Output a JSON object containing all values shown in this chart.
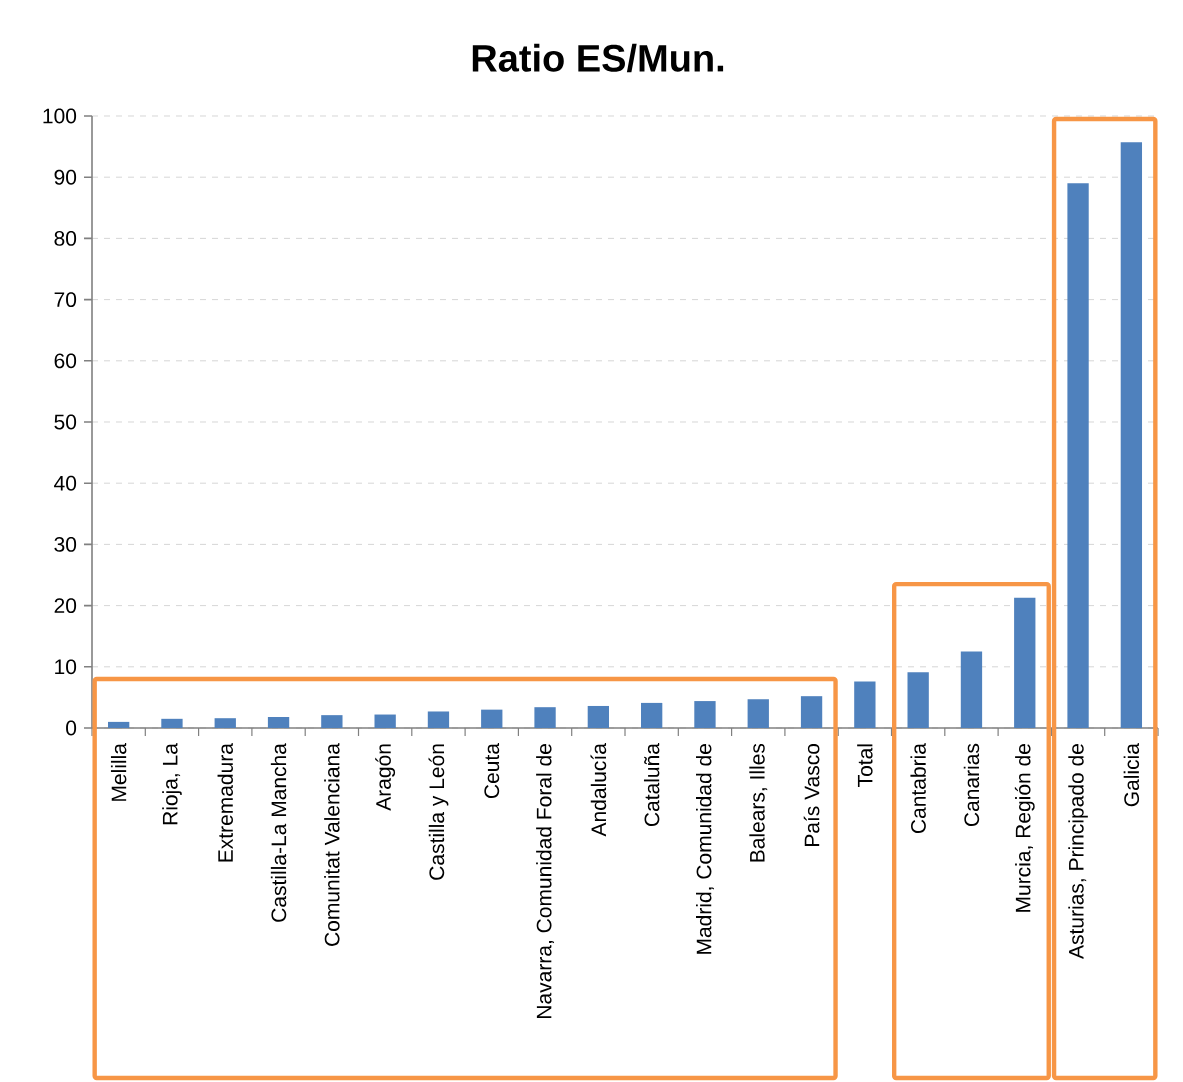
{
  "chart_data": {
    "type": "bar",
    "title": "Ratio ES/Mun.",
    "categories": [
      "Melilla",
      "Rioja, La",
      "Extremadura",
      "Castilla-La Mancha",
      "Comunitat Valenciana",
      "Aragón",
      "Castilla y León",
      "Ceuta",
      "Navarra, Comunidad Foral de",
      "Andalucía",
      "Cataluña",
      "Madrid, Comunidad de",
      "Balears, Illes",
      "País Vasco",
      "Total",
      "Cantabria",
      "Canarias",
      "Murcia, Región de",
      "Asturias, Principado de",
      "Galicia"
    ],
    "values": [
      1.0,
      1.5,
      1.6,
      1.8,
      2.1,
      2.2,
      2.7,
      3.0,
      3.4,
      3.6,
      4.1,
      4.4,
      4.7,
      5.2,
      7.6,
      9.1,
      12.5,
      21.3,
      89.0,
      95.7
    ],
    "color": "#4f81bd",
    "ylim": [
      0,
      100
    ],
    "yticks": [
      0,
      10,
      20,
      30,
      40,
      50,
      60,
      70,
      80,
      90,
      100
    ],
    "grid": "y"
  }
}
